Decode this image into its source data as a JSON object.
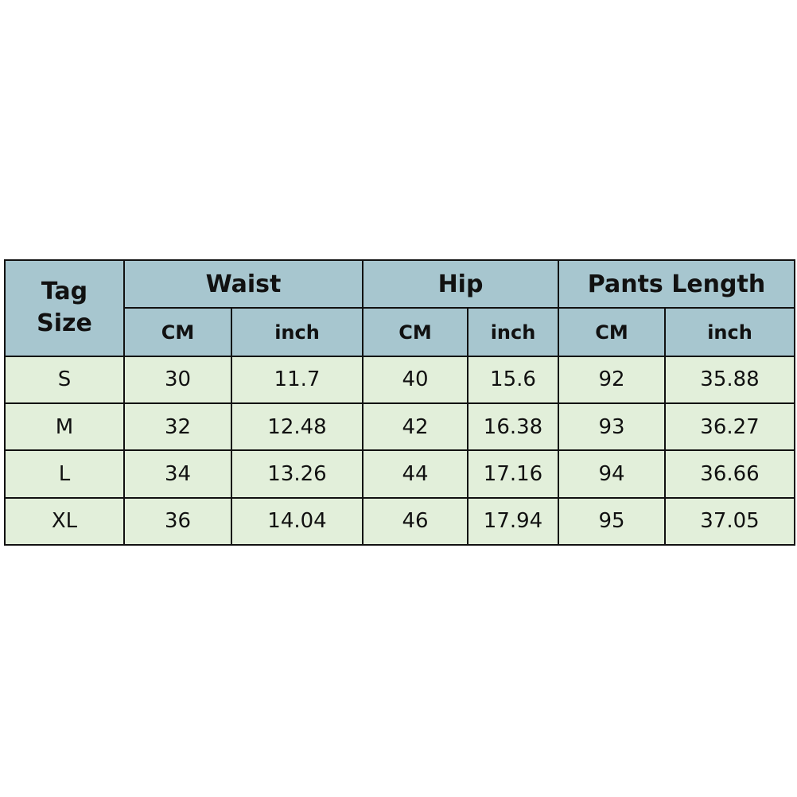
{
  "table": {
    "corner": "Tag Size",
    "groups": [
      "Waist",
      "Hip",
      "Pants Length"
    ],
    "units": [
      "CM",
      "inch",
      "CM",
      "inch",
      "CM",
      "inch"
    ],
    "rows": [
      [
        "S",
        30,
        11.7,
        40,
        15.6,
        92,
        35.88
      ],
      [
        "M",
        32,
        12.48,
        42,
        16.38,
        93,
        36.27
      ],
      [
        "L",
        34,
        13.26,
        44,
        17.16,
        94,
        36.66
      ],
      [
        "XL",
        36,
        14.04,
        46,
        17.94,
        95,
        37.05
      ]
    ]
  }
}
